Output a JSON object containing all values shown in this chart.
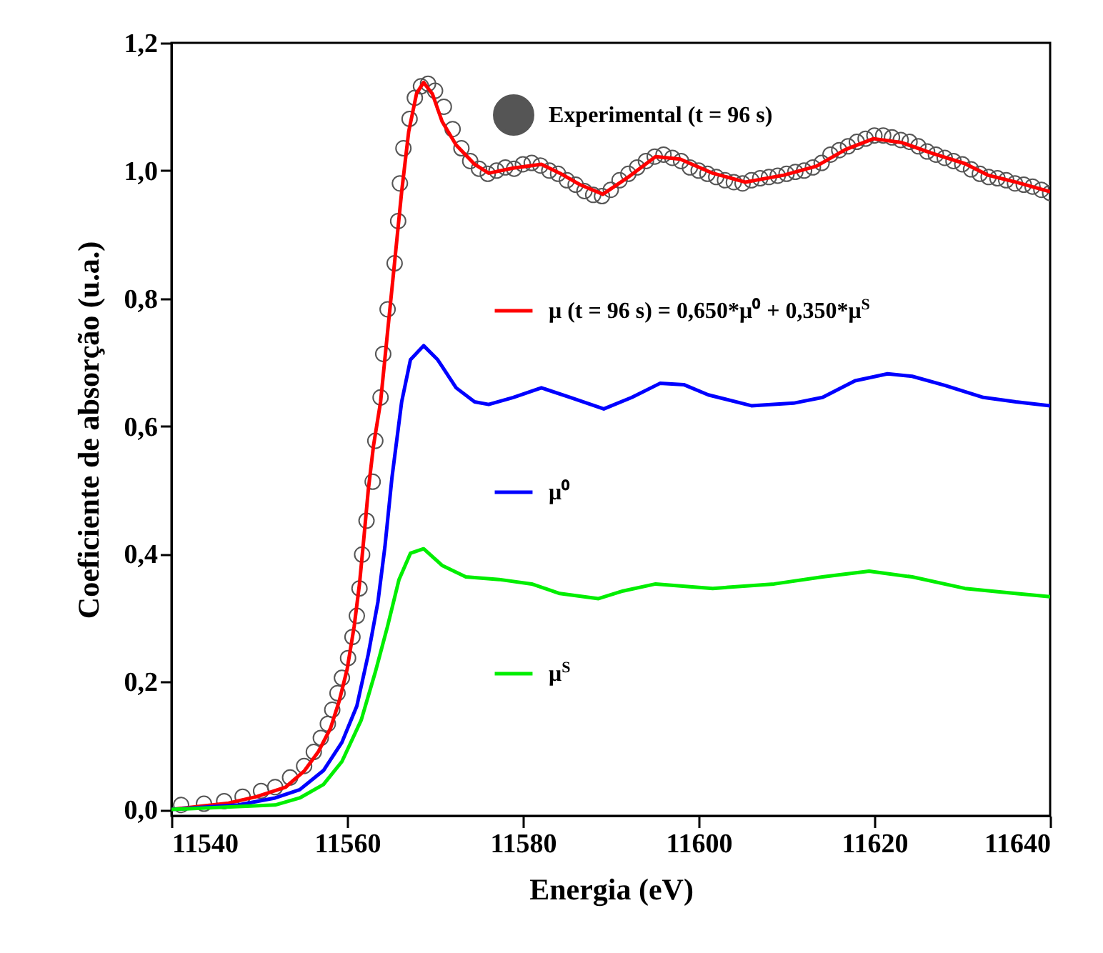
{
  "chart_data": {
    "type": "line",
    "xlabel": "Energia (eV)",
    "ylabel": "Coeficiente de absorção (u.a.)",
    "xlim": [
      11540,
      11640
    ],
    "xticks": [
      11540,
      11560,
      11580,
      11600,
      11620,
      11640
    ],
    "ylim": [
      -0.01,
      1.2
    ],
    "yticks": [
      {
        "value": 0,
        "label": "0,0"
      },
      {
        "value": 0.2,
        "label": "0,2"
      },
      {
        "value": 0.4,
        "label": "0,4"
      },
      {
        "value": 0.6,
        "label": "0,6"
      },
      {
        "value": 0.8,
        "label": "0,8"
      },
      {
        "value": 1.0,
        "label": "1,0"
      },
      {
        "value": 1.2,
        "label": "1,2"
      }
    ],
    "legend": "top right",
    "grid": false,
    "series": [
      {
        "name": "Experimental (t = 96 s)",
        "type": "scatter",
        "marker": "circle",
        "color": "#555555",
        "x": [
          11541.1,
          11543.7,
          11546,
          11548.1,
          11550.2,
          11551.8,
          11553.5,
          11555.1,
          11556.2,
          11557,
          11557.8,
          11558.3,
          11558.9,
          11559.4,
          11560.1,
          11560.6,
          11561.1,
          11561.4,
          11561.7,
          11562.2,
          11562.9,
          11563.2,
          11563.8,
          11564.1,
          11564.6,
          11565.4,
          11565.8,
          11566.0,
          11566.4,
          11567.1,
          11567.7,
          11568.4,
          11569.2,
          11570,
          11571,
          11572,
          11573,
          11574,
          11575,
          11576,
          11577,
          11578,
          11579,
          11580,
          11581,
          11582,
          11583,
          11584,
          11585,
          11586,
          11587,
          11588,
          11589,
          11590,
          11591,
          11592,
          11593,
          11594,
          11595,
          11596,
          11597,
          11598,
          11599,
          11600,
          11601,
          11602,
          11603,
          11604,
          11605,
          11606,
          11607,
          11608,
          11609,
          11610,
          11611,
          11612,
          11613,
          11614,
          11615,
          11616,
          11617,
          11618,
          11619,
          11620,
          11621,
          11622,
          11623,
          11624,
          11625,
          11626,
          11627,
          11628,
          11629,
          11630,
          11631,
          11632,
          11633,
          11634,
          11635,
          11636,
          11637,
          11638,
          11639,
          11640
        ],
        "values": [
          0.007,
          0.009,
          0.013,
          0.02,
          0.029,
          0.035,
          0.05,
          0.068,
          0.09,
          0.112,
          0.134,
          0.156,
          0.182,
          0.206,
          0.237,
          0.27,
          0.303,
          0.346,
          0.399,
          0.452,
          0.513,
          0.577,
          0.645,
          0.713,
          0.783,
          0.855,
          0.921,
          0.98,
          1.035,
          1.081,
          1.114,
          1.132,
          1.136,
          1.125,
          1.1,
          1.065,
          1.035,
          1.015,
          1.003,
          0.995,
          1.0,
          1.005,
          1.003,
          1.01,
          1.012,
          1.008,
          1.0,
          0.995,
          0.985,
          0.978,
          0.968,
          0.962,
          0.96,
          0.97,
          0.985,
          0.995,
          1.005,
          1.015,
          1.022,
          1.025,
          1.02,
          1.015,
          1.005,
          1.0,
          0.995,
          0.99,
          0.985,
          0.982,
          0.98,
          0.985,
          0.988,
          0.99,
          0.992,
          0.995,
          0.998,
          1.0,
          1.005,
          1.012,
          1.025,
          1.032,
          1.038,
          1.045,
          1.05,
          1.055,
          1.055,
          1.052,
          1.048,
          1.045,
          1.038,
          1.03,
          1.025,
          1.02,
          1.015,
          1.01,
          1.002,
          0.995,
          0.99,
          0.988,
          0.985,
          0.98,
          0.978,
          0.975,
          0.97,
          0.965
        ]
      },
      {
        "name": "μ (t = 96 s) = 0,650*μ⁰ + 0,350*μ$^{S}$",
        "color": "#ff0000",
        "x": [
          11540,
          11546.5,
          11549.7,
          11553,
          11555.1,
          11556.7,
          11558.1,
          11559.1,
          11560,
          11560.8,
          11561.4,
          11561.9,
          11562.4,
          11563.0,
          11563.8,
          11564.6,
          11565.4,
          11566.2,
          11567.0,
          11567.9,
          11568.7,
          11569.7,
          11570.8,
          11572.4,
          11574.5,
          11576.1,
          11578.9,
          11582.1,
          11584.2,
          11586.5,
          11589.1,
          11591.9,
          11595.1,
          11597.9,
          11601.6,
          11605.3,
          11609.7,
          11613.4,
          11616.7,
          11619.9,
          11623.1,
          11626.4,
          11630.3,
          11632.9,
          11636.1,
          11640
        ],
        "values": [
          0,
          0.01,
          0.02,
          0.035,
          0.06,
          0.09,
          0.127,
          0.17,
          0.22,
          0.287,
          0.353,
          0.425,
          0.5,
          0.57,
          0.638,
          0.748,
          0.857,
          0.967,
          1.061,
          1.121,
          1.138,
          1.12,
          1.077,
          1.04,
          1.01,
          0.996,
          1.004,
          1.01,
          0.996,
          0.978,
          0.963,
          0.989,
          1.022,
          1.018,
          0.996,
          0.982,
          0.993,
          1.007,
          1.033,
          1.05,
          1.044,
          1.028,
          1.011,
          0.993,
          0.982,
          0.967
        ]
      },
      {
        "name": "μ⁰",
        "color": "#0000ff",
        "x": [
          11540,
          11547.6,
          11551.8,
          11554.6,
          11557.3,
          11559.4,
          11561.1,
          11562.4,
          11563.5,
          11564.3,
          11565.1,
          11566.2,
          11567.2,
          11568.7,
          11570.3,
          11572.4,
          11574.5,
          11576.1,
          11578.9,
          11582.1,
          11585.4,
          11589.2,
          11592.4,
          11595.6,
          11598.3,
          11601.1,
          11606,
          11610.8,
          11614.1,
          11617.8,
          11621.5,
          11624.3,
          11628,
          11632.4,
          11636.1,
          11640
        ],
        "values": [
          0,
          0.007,
          0.018,
          0.031,
          0.061,
          0.105,
          0.162,
          0.243,
          0.325,
          0.412,
          0.52,
          0.638,
          0.704,
          0.726,
          0.704,
          0.66,
          0.638,
          0.634,
          0.645,
          0.66,
          0.645,
          0.627,
          0.645,
          0.667,
          0.665,
          0.649,
          0.632,
          0.636,
          0.645,
          0.671,
          0.682,
          0.678,
          0.664,
          0.645,
          0.638,
          0.632
        ]
      },
      {
        "name": "μ$^{S}$",
        "color": "#00ee00",
        "x": [
          11540,
          11551.8,
          11554.6,
          11557.3,
          11559.4,
          11561.6,
          11563.2,
          11564.6,
          11565.9,
          11567.2,
          11568.7,
          11570.8,
          11573.5,
          11577.3,
          11581,
          11584.2,
          11588.6,
          11591.4,
          11595.1,
          11601.6,
          11608.6,
          11614.1,
          11619.4,
          11624.3,
          11630.3,
          11636.1,
          11640
        ],
        "values": [
          0,
          0.007,
          0.018,
          0.039,
          0.075,
          0.14,
          0.215,
          0.287,
          0.36,
          0.401,
          0.408,
          0.382,
          0.364,
          0.36,
          0.353,
          0.338,
          0.33,
          0.342,
          0.353,
          0.346,
          0.353,
          0.364,
          0.373,
          0.364,
          0.346,
          0.338,
          0.333
        ]
      }
    ]
  }
}
